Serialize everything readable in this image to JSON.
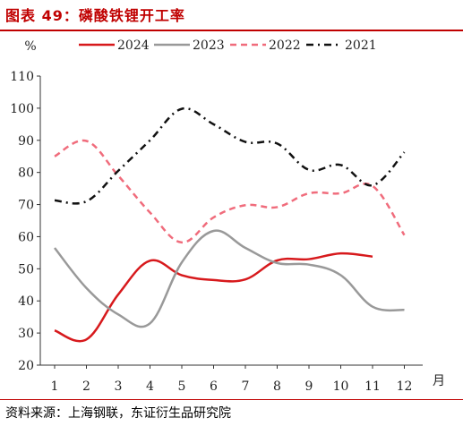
{
  "header": {
    "title": "图表 49：磷酸铁锂开工率"
  },
  "footer": {
    "source": "资料来源：上海钢联，东证衍生品研究院"
  },
  "chart_data": {
    "type": "line",
    "ylabel": "%",
    "xlabel": "月",
    "categories": [
      1,
      2,
      3,
      4,
      5,
      6,
      7,
      8,
      9,
      10,
      11,
      12
    ],
    "ylim": [
      20,
      110
    ],
    "yticks": [
      20,
      30,
      40,
      50,
      60,
      70,
      80,
      90,
      100,
      110
    ],
    "grid": false,
    "legend": "top",
    "series": [
      {
        "name": "2024",
        "color": "#d7191c",
        "dash": "solid",
        "values": [
          30.8,
          28.0,
          42.0,
          52.5,
          48.0,
          46.5,
          46.7,
          52.6,
          53.0,
          54.8,
          53.8,
          null
        ]
      },
      {
        "name": "2023",
        "color": "#999999",
        "dash": "solid",
        "values": [
          56.5,
          44.0,
          35.8,
          33.0,
          52.0,
          61.8,
          56.5,
          51.8,
          51.3,
          48.0,
          38.2,
          37.2
        ]
      },
      {
        "name": "2022",
        "color": "#f06c7c",
        "dash": "dashed",
        "values": [
          85.0,
          89.8,
          79.0,
          67.5,
          58.2,
          66.0,
          69.8,
          69.2,
          73.5,
          73.5,
          75.8,
          60.5
        ]
      },
      {
        "name": "2021",
        "color": "#111111",
        "dash": "dashdot",
        "values": [
          71.3,
          71.0,
          80.5,
          90.0,
          99.8,
          95.0,
          89.5,
          89.0,
          80.8,
          82.3,
          76.0,
          86.3
        ]
      }
    ]
  }
}
